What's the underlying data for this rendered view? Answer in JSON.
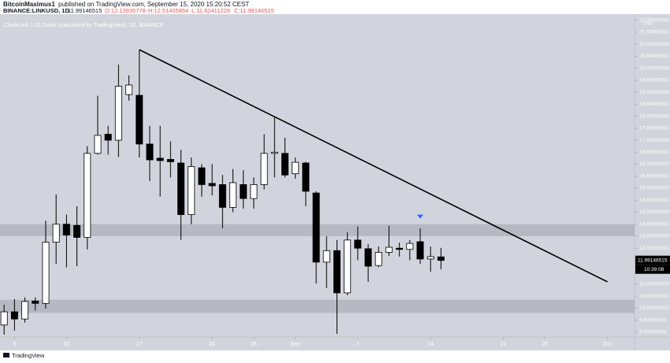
{
  "header": {
    "author": "BitcoinMaximus1",
    "published": "published on TradingView.com, September 15, 2020 15:20:52 CEST",
    "symbol": "BINANCE:LINKUSD, 1D",
    "price": "11.99146515",
    "open": "O:12.13935778",
    "high": "H:12.51405864",
    "low": "L:11.62411229",
    "close": "C:11.99146515"
  },
  "footer": {
    "logo": "TradingView"
  },
  "chart_data": {
    "type": "candlestick",
    "title": "ChainLink / US Dollar (calculated by TradingView), 1D, BINANCE",
    "currency": "USD",
    "countdown": "10:39:08",
    "x": [
      "08-04",
      "08-05",
      "08-06",
      "08-07",
      "08-08",
      "08-09",
      "08-10",
      "08-11",
      "08-12",
      "08-13",
      "08-14",
      "08-15",
      "08-16",
      "08-17",
      "08-18",
      "08-19",
      "08-20",
      "08-21",
      "08-22",
      "08-23",
      "08-24",
      "08-25",
      "08-26",
      "08-27",
      "08-28",
      "08-29",
      "08-30",
      "08-31",
      "09-01",
      "09-02",
      "09-03",
      "09-04",
      "09-05",
      "09-06",
      "09-07",
      "09-08",
      "09-09",
      "09-10",
      "09-11",
      "09-12",
      "09-13",
      "09-14",
      "09-15"
    ],
    "open": [
      9.3,
      9.85,
      9.55,
      10.3,
      10.2,
      12.75,
      13.5,
      13.45,
      12.95,
      16.45,
      17.25,
      17.0,
      18.9,
      18.87,
      16.84,
      16.25,
      16.2,
      16.05,
      13.9,
      15.85,
      15.2,
      15.15,
      14.2,
      15.15,
      14.57,
      15.15,
      16.45,
      16.45,
      15.6,
      16.05,
      14.8,
      11.92,
      12.4,
      10.64,
      12.84,
      12.48,
      11.78,
      12.33,
      12.5,
      12.45,
      12.77,
      12.05,
      12.13935778
    ],
    "high": [
      10.15,
      10.38,
      10.45,
      10.45,
      13.65,
      14.74,
      13.9,
      14.25,
      16.75,
      18.85,
      17.6,
      20.15,
      19.7,
      20.77,
      17.6,
      17.6,
      16.95,
      16.6,
      16.28,
      16.0,
      16.0,
      15.55,
      15.8,
      15.75,
      15.45,
      17.25,
      17.98,
      17.1,
      16.28,
      16.1,
      14.87,
      13.0,
      12.84,
      13.16,
      13.4,
      12.67,
      12.57,
      13.43,
      12.74,
      12.84,
      13.33,
      12.57,
      12.51405864
    ],
    "low": [
      8.9,
      9.07,
      9.4,
      9.9,
      9.98,
      11.85,
      11.7,
      11.75,
      12.45,
      16.4,
      16.4,
      16.3,
      18.65,
      16.28,
      15.3,
      14.65,
      15.45,
      12.85,
      13.5,
      14.65,
      14.7,
      13.33,
      14.0,
      14.15,
      14.15,
      14.95,
      15.45,
      15.45,
      15.4,
      14.25,
      11.03,
      10.84,
      8.93,
      10.54,
      12.0,
      11.1,
      11.7,
      12.18,
      12.15,
      12.0,
      11.85,
      11.52,
      11.62411229
    ],
    "close": [
      9.85,
      9.55,
      10.28,
      10.2,
      12.75,
      13.5,
      13.05,
      12.95,
      16.45,
      17.2,
      17.0,
      19.25,
      19.3,
      16.84,
      16.18,
      16.15,
      16.1,
      13.9,
      15.9,
      15.15,
      15.1,
      14.2,
      15.23,
      14.57,
      15.15,
      16.45,
      16.5,
      15.55,
      16.08,
      14.87,
      11.92,
      12.4,
      10.64,
      12.84,
      12.5,
      11.75,
      12.33,
      12.54,
      12.45,
      12.7,
      12.05,
      12.15,
      11.99146515
    ],
    "up_color": "#ffffff",
    "down_color": "#000000",
    "zones": [
      [
        13.0,
        13.5
      ],
      [
        9.8,
        10.35
      ]
    ],
    "trendline": {
      "x": [
        "08-17",
        "10-01"
      ],
      "values": [
        20.77,
        11.1
      ]
    },
    "signal": {
      "x": "09-13",
      "value": 13.8,
      "color": "#2962ff"
    },
    "xlim": [
      "08-03",
      "10-03"
    ],
    "xticks": [
      {
        "value": "08-05",
        "label": "5"
      },
      {
        "value": "08-10",
        "label": "10"
      },
      {
        "value": "08-17",
        "label": "17"
      },
      {
        "value": "08-24",
        "label": "24"
      },
      {
        "value": "08-28",
        "label": "28"
      },
      {
        "value": "09-01",
        "label": "Sep"
      },
      {
        "value": "09-07",
        "label": "7"
      },
      {
        "value": "09-14",
        "label": "14"
      },
      {
        "value": "09-21",
        "label": "21"
      },
      {
        "value": "09-25",
        "label": "25"
      },
      {
        "value": "10-01",
        "label": "Oct"
      }
    ],
    "ylim": [
      8.8,
      22.25
    ],
    "yticks": [
      {
        "value": 9,
        "label": "9.00000000"
      },
      {
        "value": 9.5,
        "label": "9.50000000"
      },
      {
        "value": 10,
        "label": "10.00000000"
      },
      {
        "value": 10.5,
        "label": "10.50000000"
      },
      {
        "value": 11,
        "label": "11.00000000"
      },
      {
        "value": 11.5,
        "label": "11.50000000"
      },
      {
        "value": 12,
        "label": "12.00000000"
      },
      {
        "value": 12.5,
        "label": "12.50000000"
      },
      {
        "value": 13,
        "label": "13.00000000"
      },
      {
        "value": 13.5,
        "label": "13.50000000"
      },
      {
        "value": 14,
        "label": "14.00000000"
      },
      {
        "value": 14.5,
        "label": "14.50000000"
      },
      {
        "value": 15,
        "label": "15.00000000"
      },
      {
        "value": 15.5,
        "label": "15.50000000"
      },
      {
        "value": 16,
        "label": "16.00000000"
      },
      {
        "value": 16.5,
        "label": "16.50000000"
      },
      {
        "value": 17,
        "label": "17.00000000"
      },
      {
        "value": 17.5,
        "label": "17.50000000"
      },
      {
        "value": 18,
        "label": "18.00000000"
      },
      {
        "value": 18.5,
        "label": "18.50000000"
      },
      {
        "value": 19,
        "label": "19.00000000"
      },
      {
        "value": 19.5,
        "label": "19.50000000"
      },
      {
        "value": 20,
        "label": "20.00000000"
      },
      {
        "value": 20.5,
        "label": "20.50000000"
      },
      {
        "value": 21,
        "label": "21.00000000"
      },
      {
        "value": 21.5,
        "label": "21.50000000"
      },
      {
        "value": 22,
        "label": "22.00000000"
      }
    ],
    "grid": false
  }
}
